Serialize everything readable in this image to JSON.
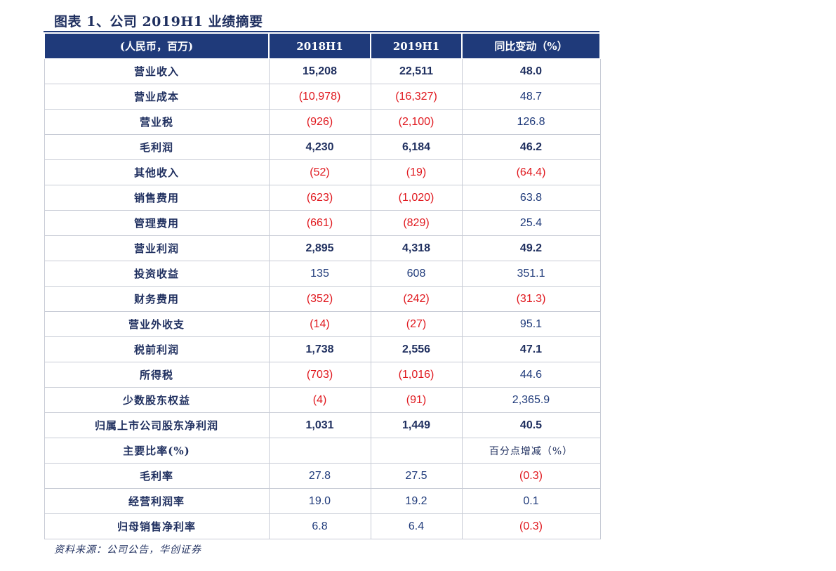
{
  "title": "图表 1、公司 2019H1 业绩摘要",
  "header": [
    "(人民币，百万)",
    "2018H1",
    "2019H1",
    "同比变动（%）"
  ],
  "rows": [
    {
      "label": "营业收入",
      "v1": "15,208",
      "v2": "22,511",
      "v3": "48.0",
      "bold": true,
      "neg1": false,
      "neg2": false,
      "neg3": false
    },
    {
      "label": "营业成本",
      "v1": "(10,978)",
      "v2": "(16,327)",
      "v3": "48.7",
      "bold": false,
      "neg1": true,
      "neg2": true,
      "neg3": false
    },
    {
      "label": "营业税",
      "v1": "(926)",
      "v2": "(2,100)",
      "v3": "126.8",
      "bold": false,
      "neg1": true,
      "neg2": true,
      "neg3": false
    },
    {
      "label": "毛利润",
      "v1": "4,230",
      "v2": "6,184",
      "v3": "46.2",
      "bold": true,
      "neg1": false,
      "neg2": false,
      "neg3": false
    },
    {
      "label": "其他收入",
      "v1": "(52)",
      "v2": "(19)",
      "v3": "(64.4)",
      "bold": false,
      "neg1": true,
      "neg2": true,
      "neg3": true
    },
    {
      "label": "销售费用",
      "v1": "(623)",
      "v2": "(1,020)",
      "v3": "63.8",
      "bold": false,
      "neg1": true,
      "neg2": true,
      "neg3": false
    },
    {
      "label": "管理费用",
      "v1": "(661)",
      "v2": "(829)",
      "v3": "25.4",
      "bold": false,
      "neg1": true,
      "neg2": true,
      "neg3": false
    },
    {
      "label": "营业利润",
      "v1": "2,895",
      "v2": "4,318",
      "v3": "49.2",
      "bold": true,
      "neg1": false,
      "neg2": false,
      "neg3": false
    },
    {
      "label": "投资收益",
      "v1": "135",
      "v2": "608",
      "v3": "351.1",
      "bold": false,
      "neg1": false,
      "neg2": false,
      "neg3": false
    },
    {
      "label": "财务费用",
      "v1": "(352)",
      "v2": "(242)",
      "v3": "(31.3)",
      "bold": false,
      "neg1": true,
      "neg2": true,
      "neg3": true
    },
    {
      "label": "营业外收支",
      "v1": "(14)",
      "v2": "(27)",
      "v3": "95.1",
      "bold": false,
      "neg1": true,
      "neg2": true,
      "neg3": false
    },
    {
      "label": "税前利润",
      "v1": "1,738",
      "v2": "2,556",
      "v3": "47.1",
      "bold": true,
      "neg1": false,
      "neg2": false,
      "neg3": false
    },
    {
      "label": "所得税",
      "v1": "(703)",
      "v2": "(1,016)",
      "v3": "44.6",
      "bold": false,
      "neg1": true,
      "neg2": true,
      "neg3": false
    },
    {
      "label": "少数股东权益",
      "v1": "(4)",
      "v2": "(91)",
      "v3": "2,365.9",
      "bold": false,
      "neg1": true,
      "neg2": true,
      "neg3": false
    },
    {
      "label": "归属上市公司股东净利润",
      "v1": "1,031",
      "v2": "1,449",
      "v3": "40.5",
      "bold": true,
      "neg1": false,
      "neg2": false,
      "neg3": false
    },
    {
      "label": "主要比率(%)",
      "v1": "",
      "v2": "",
      "v3": "百分点增减（%）",
      "bold": false,
      "neg1": false,
      "neg2": false,
      "neg3": false,
      "note": true
    },
    {
      "label": "毛利率",
      "v1": "27.8",
      "v2": "27.5",
      "v3": "(0.3)",
      "bold": false,
      "neg1": false,
      "neg2": false,
      "neg3": true
    },
    {
      "label": "经营利润率",
      "v1": "19.0",
      "v2": "19.2",
      "v3": "0.1",
      "bold": false,
      "neg1": false,
      "neg2": false,
      "neg3": false
    },
    {
      "label": "归母销售净利率",
      "v1": "6.8",
      "v2": "6.4",
      "v3": "(0.3)",
      "bold": false,
      "neg1": false,
      "neg2": false,
      "neg3": true
    }
  ],
  "source": "资料来源：公司公告，华创证券"
}
